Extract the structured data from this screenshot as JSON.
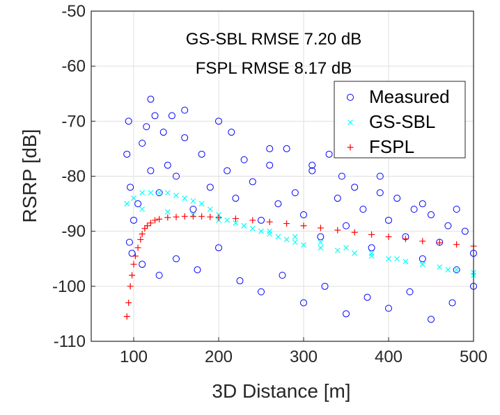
{
  "chart_data": {
    "type": "scatter",
    "title": "",
    "xlabel": "3D Distance [m]",
    "ylabel": "RSRP [dB]",
    "xlim": [
      50,
      500
    ],
    "ylim": [
      -110,
      -50
    ],
    "xticks": [
      100,
      200,
      300,
      400,
      500
    ],
    "yticks": [
      -50,
      -60,
      -70,
      -80,
      -90,
      -100,
      -110
    ],
    "xtick_labels": [
      "100",
      "200",
      "300",
      "400",
      "500"
    ],
    "ytick_labels": [
      "-50",
      "-60",
      "-70",
      "-80",
      "-90",
      "-100",
      "-110"
    ],
    "grid": true,
    "annotations": [
      "GS-SBL RMSE 7.20 dB",
      "FSPL RMSE 8.17 dB"
    ],
    "legend_position": "top-right",
    "series": [
      {
        "name": "Measured",
        "marker": "o",
        "color": "#0000ff",
        "x": [
          92,
          94,
          96,
          98,
          100,
          105,
          110,
          115,
          120,
          125,
          130,
          135,
          140,
          145,
          150,
          160,
          170,
          180,
          190,
          200,
          210,
          220,
          230,
          240,
          250,
          260,
          270,
          280,
          290,
          300,
          310,
          320,
          330,
          340,
          350,
          360,
          370,
          380,
          390,
          400,
          410,
          420,
          430,
          440,
          450,
          460,
          470,
          480,
          490,
          500,
          95,
          110,
          130,
          150,
          175,
          200,
          225,
          250,
          275,
          300,
          325,
          350,
          375,
          400,
          425,
          450,
          475,
          500,
          120,
          160,
          215,
          260,
          310,
          345,
          390,
          440,
          480
        ],
        "y": [
          -76,
          -70,
          -82,
          -94,
          -88,
          -85,
          -74,
          -71,
          -79,
          -69,
          -83,
          -72,
          -78,
          -69,
          -80,
          -73,
          -86,
          -76,
          -82,
          -70,
          -79,
          -84,
          -77,
          -81,
          -88,
          -78,
          -85,
          -75,
          -83,
          -87,
          -79,
          -91,
          -76,
          -84,
          -89,
          -82,
          -86,
          -93,
          -80,
          -88,
          -84,
          -91,
          -86,
          -95,
          -87,
          -92,
          -89,
          -97,
          -90,
          -94,
          -92,
          -96,
          -98,
          -95,
          -97,
          -93,
          -99,
          -101,
          -98,
          -103,
          -100,
          -105,
          -102,
          -104,
          -101,
          -106,
          -103,
          -100,
          -66,
          -68,
          -72,
          -75,
          -78,
          -80,
          -83,
          -85,
          -86
        ]
      },
      {
        "name": "GS-SBL",
        "marker": "x",
        "color": "#00ffff",
        "x": [
          92,
          100,
          110,
          120,
          130,
          140,
          150,
          160,
          170,
          180,
          190,
          200,
          210,
          220,
          230,
          240,
          250,
          260,
          270,
          280,
          290,
          300,
          320,
          340,
          360,
          380,
          400,
          420,
          440,
          460,
          480,
          500,
          110,
          140,
          170,
          200,
          230,
          260,
          290,
          320,
          350,
          380,
          410,
          440,
          470,
          500
        ],
        "y": [
          -85,
          -84,
          -83,
          -83,
          -83,
          -83,
          -83.5,
          -84,
          -84.5,
          -85,
          -86,
          -87,
          -88,
          -88.5,
          -89,
          -89.5,
          -90,
          -90.5,
          -91,
          -91.5,
          -92,
          -92.5,
          -93,
          -93.5,
          -94,
          -94.5,
          -95,
          -95.5,
          -96,
          -96.5,
          -97,
          -97.5,
          -86,
          -86.5,
          -87,
          -88,
          -89,
          -90,
          -91,
          -92,
          -93,
          -94,
          -95,
          -96,
          -97,
          -98
        ]
      },
      {
        "name": "FSPL",
        "marker": "+",
        "color": "#ff0000",
        "x": [
          92,
          94,
          96,
          98,
          100,
          102,
          105,
          108,
          110,
          113,
          116,
          120,
          125,
          130,
          140,
          150,
          160,
          170,
          180,
          190,
          200,
          220,
          240,
          260,
          280,
          300,
          320,
          340,
          360,
          380,
          400,
          420,
          440,
          460,
          480,
          500
        ],
        "y": [
          -105.5,
          -103,
          -100,
          -98,
          -96,
          -94.5,
          -93,
          -91.5,
          -90.5,
          -89.5,
          -89,
          -88.5,
          -88,
          -87.8,
          -87.5,
          -87.4,
          -87.3,
          -87.3,
          -87.3,
          -87.4,
          -87.5,
          -87.7,
          -88,
          -88.3,
          -88.6,
          -89,
          -89.4,
          -89.8,
          -90.2,
          -90.6,
          -91,
          -91.4,
          -91.8,
          -92.1,
          -92.4,
          -92.7
        ]
      }
    ]
  }
}
